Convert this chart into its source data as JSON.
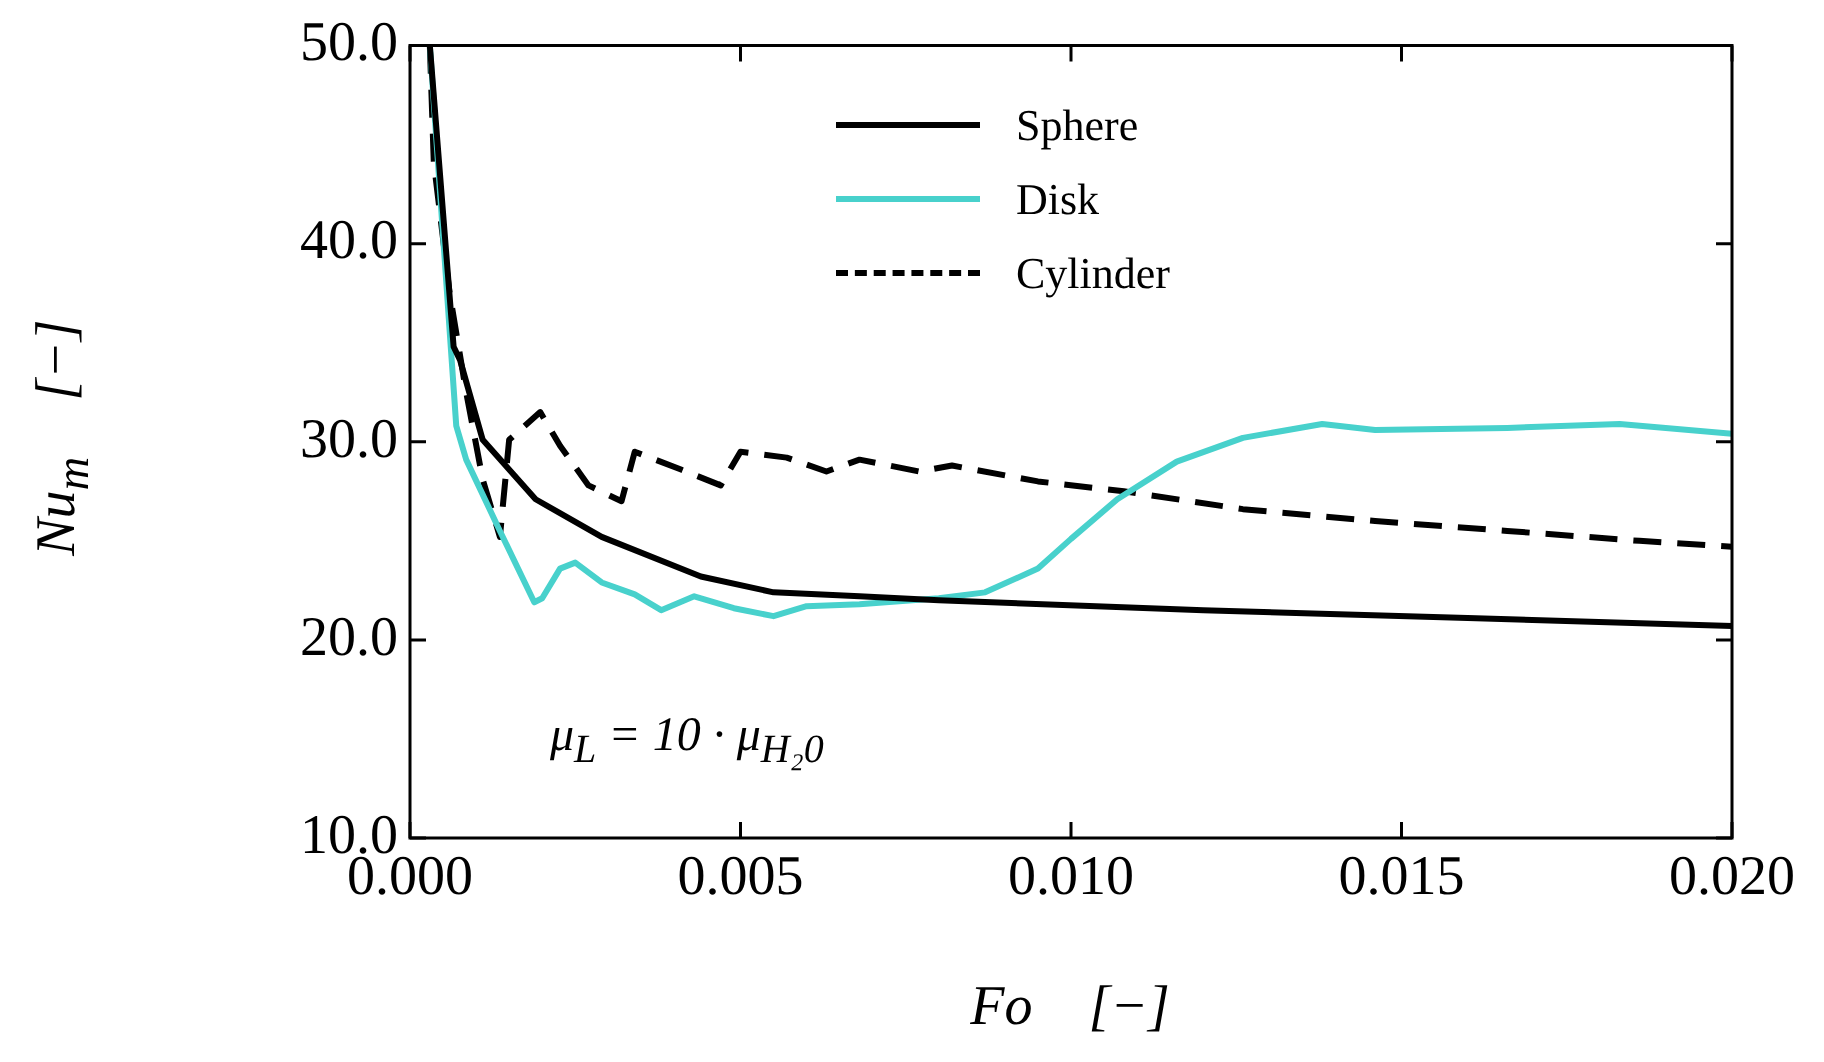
{
  "chart_data": {
    "type": "line",
    "xlabel": "Fo    [−]",
    "ylabel": "Nu$_{m}$    [−]",
    "xlim": [
      0,
      0.02
    ],
    "ylim": [
      10,
      50
    ],
    "xticks": [
      {
        "value": 0,
        "label": "0.000"
      },
      {
        "value": 0.005,
        "label": "0.005"
      },
      {
        "value": 0.01,
        "label": "0.010"
      },
      {
        "value": 0.015,
        "label": "0.015"
      },
      {
        "value": 0.02,
        "label": "0.020"
      }
    ],
    "yticks": [
      {
        "value": 10,
        "label": "10.0"
      },
      {
        "value": 20,
        "label": "20.0"
      },
      {
        "value": 30,
        "label": "30.0"
      },
      {
        "value": 40,
        "label": "40.0"
      },
      {
        "value": 50,
        "label": "50.0"
      }
    ],
    "grid": false,
    "legend": "top",
    "marker": "none",
    "annotations": [
      "μ$_{L}$ = 10 · μ$_{H₂0}$"
    ],
    "series": [
      {
        "name": "Sphere",
        "color": "#000000",
        "line_style": "solid",
        "x": [
          0.0003,
          0.00066,
          0.00076,
          0.0011,
          0.0019,
          0.0029,
          0.0044,
          0.0055,
          0.0068,
          0.008,
          0.012,
          0.016,
          0.02
        ],
        "values": [
          50,
          34.8,
          34.1,
          30.1,
          27.1,
          25.2,
          23.2,
          22.4,
          22.2,
          22.0,
          21.5,
          21.1,
          20.7
        ]
      },
      {
        "name": "Disk",
        "color": "#48d1cc",
        "line_style": "solid",
        "x": [
          0.0003,
          0.0007,
          0.00085,
          0.00136,
          0.00188,
          0.002,
          0.00227,
          0.0025,
          0.0029,
          0.0034,
          0.0038,
          0.0043,
          0.0049,
          0.0055,
          0.006,
          0.0068,
          0.008,
          0.0087,
          0.0095,
          0.01,
          0.0107,
          0.0116,
          0.0126,
          0.0138,
          0.0146,
          0.0166,
          0.0183,
          0.02
        ],
        "values": [
          50,
          30.8,
          29.1,
          25.5,
          21.9,
          22.1,
          23.6,
          23.9,
          22.9,
          22.3,
          21.5,
          22.2,
          21.6,
          21.2,
          21.7,
          21.8,
          22.1,
          22.4,
          23.6,
          25.1,
          27.1,
          29.0,
          30.2,
          30.9,
          30.6,
          30.7,
          30.9,
          30.4
        ]
      },
      {
        "name": "Cylinder",
        "color": "#000000",
        "line_style": "dashed",
        "x": [
          0.0003,
          0.00036,
          0.0006,
          0.00085,
          0.0011,
          0.00136,
          0.0015,
          0.00197,
          0.00227,
          0.0027,
          0.0032,
          0.0034,
          0.0041,
          0.0047,
          0.005,
          0.0057,
          0.0063,
          0.0068,
          0.0077,
          0.0082,
          0.0095,
          0.0108,
          0.0126,
          0.0146,
          0.0166,
          0.0186,
          0.02
        ],
        "values": [
          50,
          44.1,
          37.5,
          32.5,
          28.1,
          25.2,
          30.1,
          31.5,
          29.8,
          27.8,
          27.0,
          29.5,
          28.6,
          27.8,
          29.5,
          29.2,
          28.5,
          29.1,
          28.5,
          28.8,
          28.0,
          27.5,
          26.6,
          26.0,
          25.5,
          25.0,
          24.7
        ]
      }
    ]
  }
}
